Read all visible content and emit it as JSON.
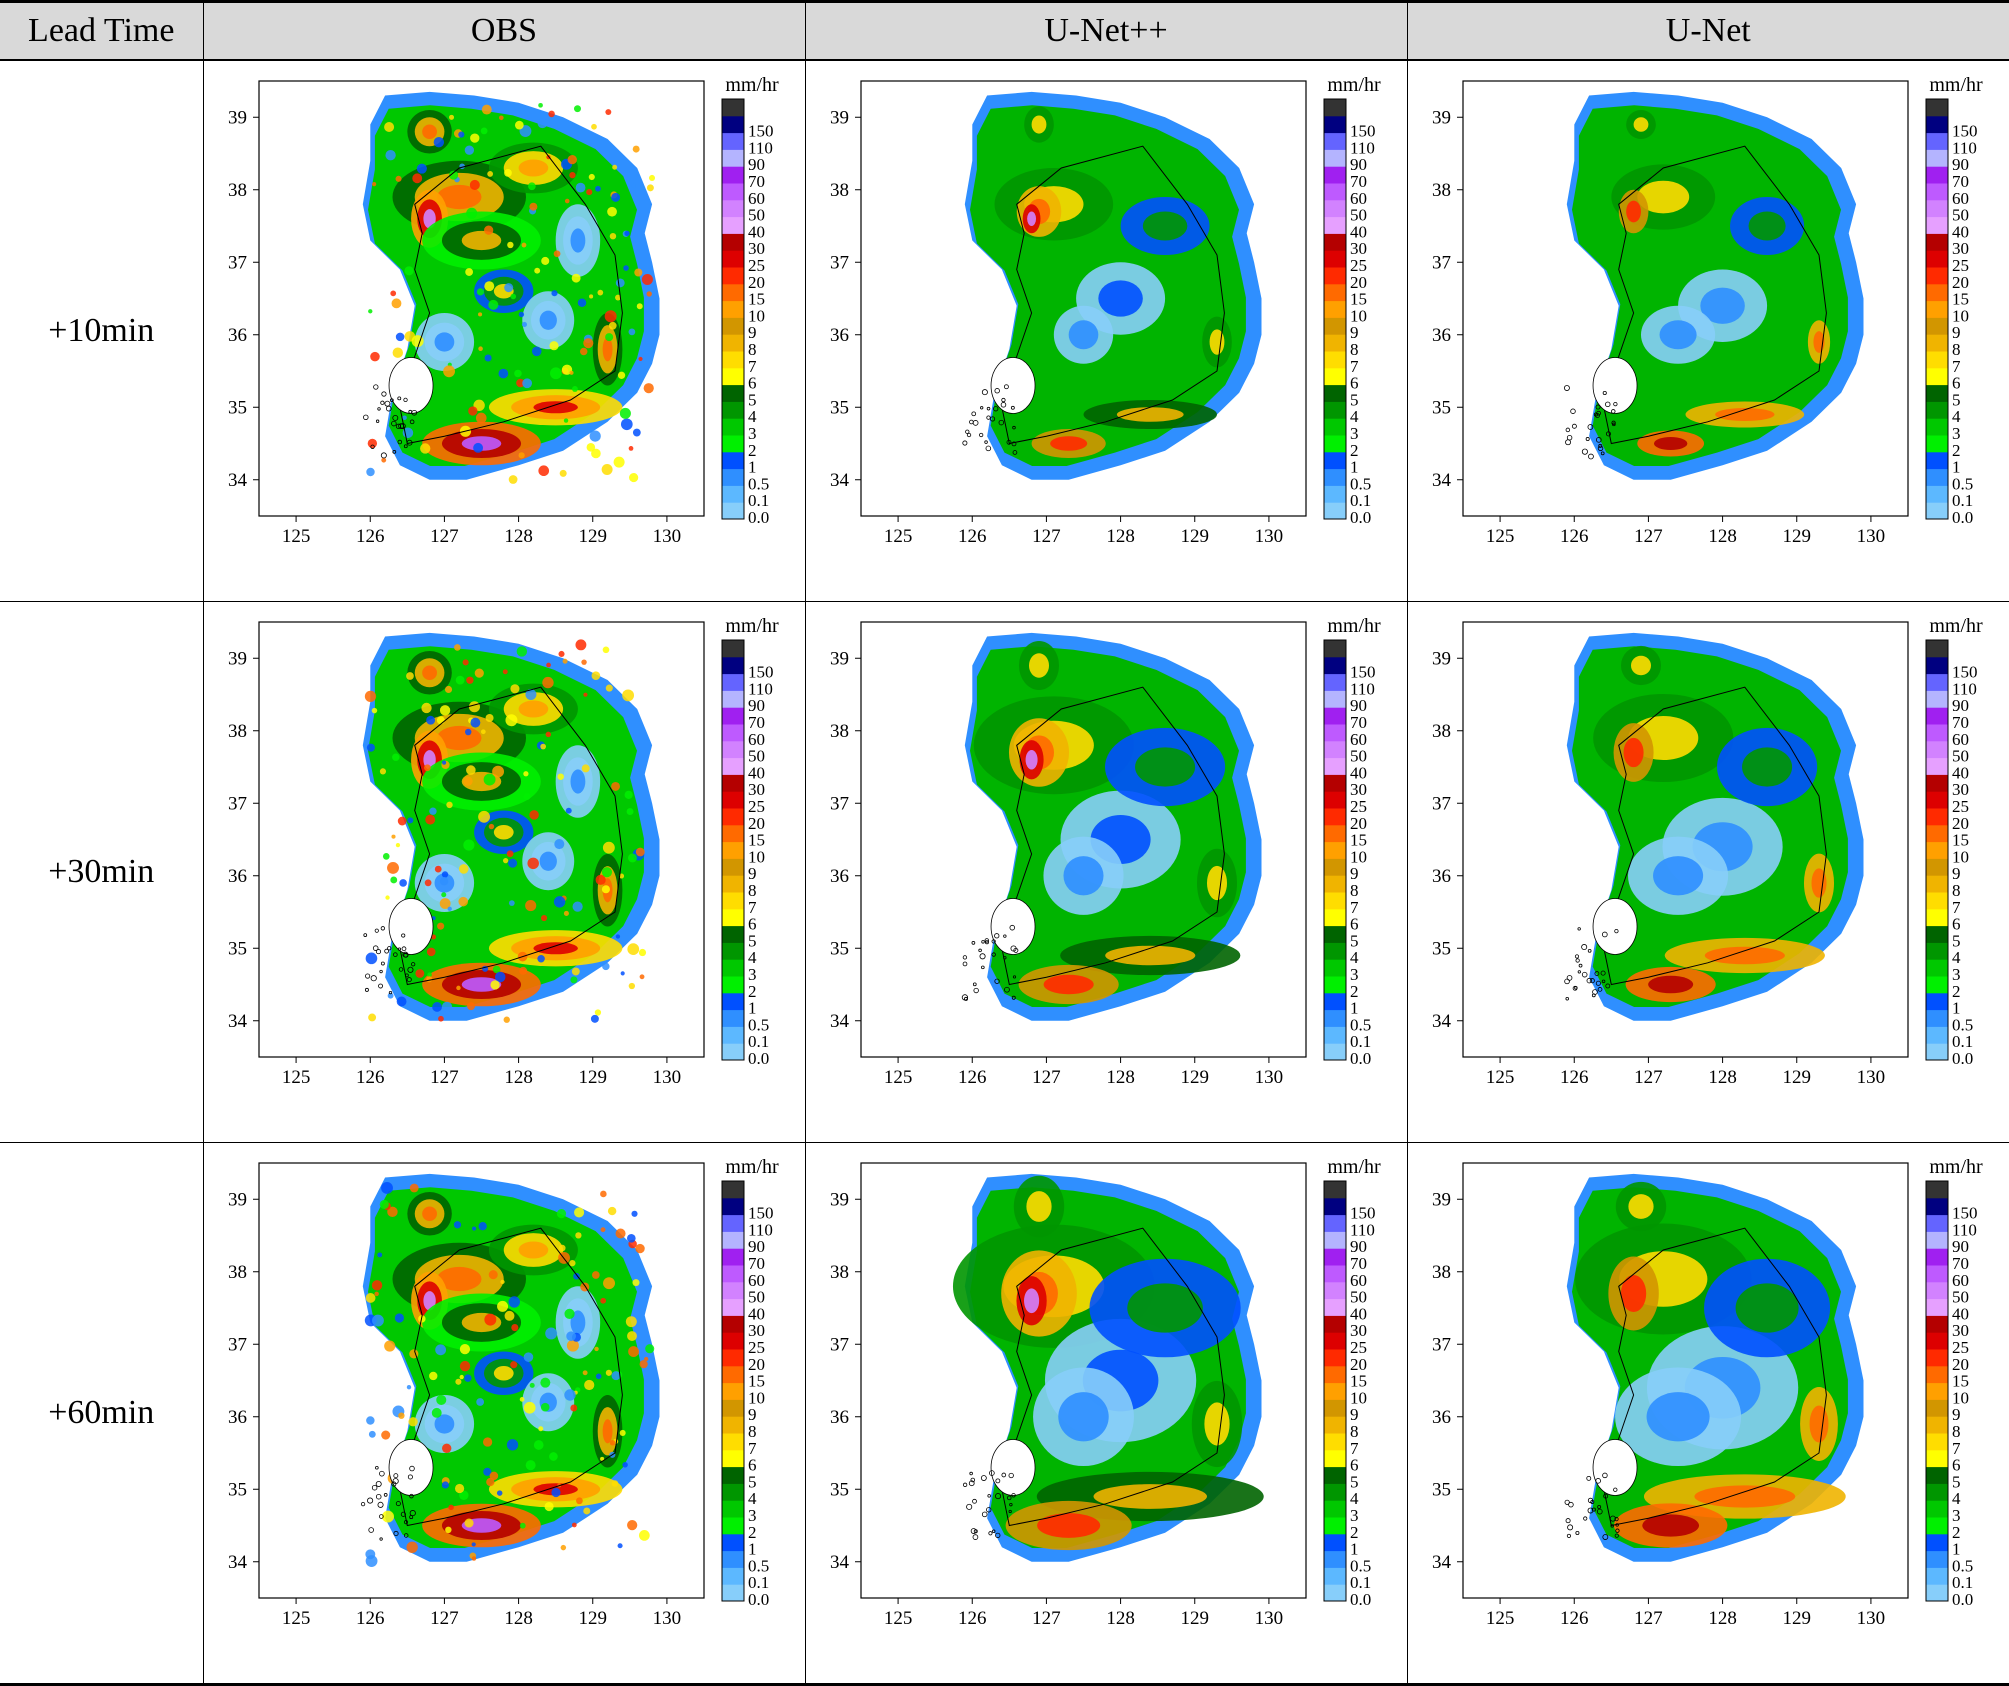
{
  "header": {
    "lead_time": "Lead Time",
    "columns": [
      "OBS",
      "U-Net++",
      "U-Net"
    ]
  },
  "rows": [
    {
      "label": "+10min"
    },
    {
      "label": "+30min"
    },
    {
      "label": "+60min"
    }
  ],
  "chart_data": {
    "type": "heatmap",
    "description_units": "mm/hr",
    "colorbar": {
      "unit_label": "mm/hr",
      "ticks": [
        "0.0",
        "0.1",
        "0.5",
        "1",
        "2",
        "3",
        "4",
        "5",
        "6",
        "7",
        "8",
        "9",
        "10",
        "15",
        "20",
        "25",
        "30",
        "40",
        "50",
        "60",
        "70",
        "90",
        "110",
        "150"
      ],
      "colors": [
        "#87cefa",
        "#5cb8ff",
        "#2f8fff",
        "#0050ff",
        "#00f000",
        "#00c800",
        "#009600",
        "#006400",
        "#ffff00",
        "#ffdd00",
        "#f0b400",
        "#d29600",
        "#ffa000",
        "#ff6a00",
        "#ff2a00",
        "#dd0000",
        "#b40000",
        "#e6a0ff",
        "#d282ff",
        "#be5aff",
        "#a020f0",
        "#b4b4ff",
        "#6464ff",
        "#000080",
        "#333333"
      ]
    },
    "xticks": [
      "125",
      "126",
      "127",
      "128",
      "129",
      "130"
    ],
    "yticks": [
      "34",
      "35",
      "36",
      "37",
      "38",
      "39"
    ],
    "xlim": [
      124.5,
      130.5
    ],
    "ylim": [
      33.5,
      39.5
    ],
    "panels": [
      {
        "row": "+10min",
        "column": "OBS"
      },
      {
        "row": "+10min",
        "column": "U-Net++"
      },
      {
        "row": "+10min",
        "column": "U-Net"
      },
      {
        "row": "+30min",
        "column": "OBS"
      },
      {
        "row": "+30min",
        "column": "U-Net++"
      },
      {
        "row": "+30min",
        "column": "U-Net"
      },
      {
        "row": "+60min",
        "column": "OBS"
      },
      {
        "row": "+60min",
        "column": "U-Net++"
      },
      {
        "row": "+60min",
        "column": "U-Net"
      }
    ]
  }
}
